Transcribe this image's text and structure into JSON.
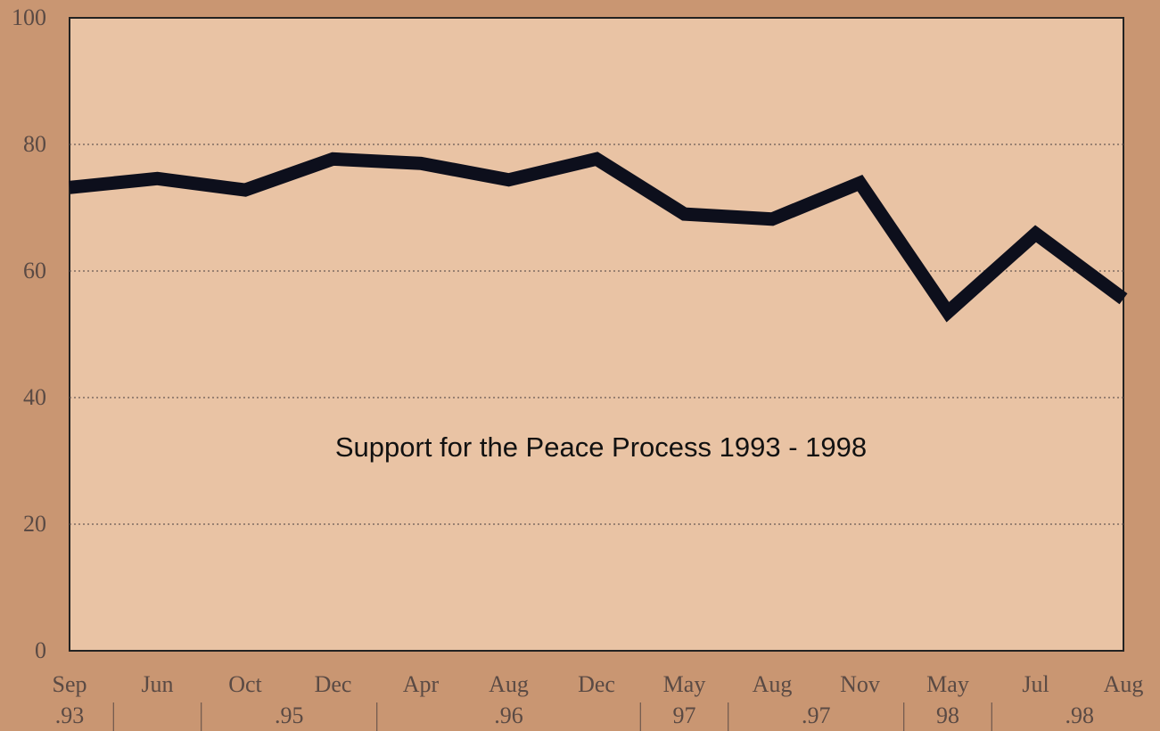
{
  "chart_data": {
    "type": "line",
    "title": "Support for the Peace Process 1993 - 1998",
    "categories": [
      "Sep",
      "Jun",
      "Oct",
      "Dec",
      "Apr",
      "Aug",
      "Dec",
      "May",
      "Aug",
      "Nov",
      "May",
      "Jul",
      "Aug"
    ],
    "year_groups": [
      {
        "label": ".93",
        "first": 0,
        "last": 0
      },
      {
        "label": ".95",
        "first": 2,
        "last": 3
      },
      {
        "label": ".96",
        "first": 4,
        "last": 6
      },
      {
        "label": "97",
        "first": 7,
        "last": 7
      },
      {
        "label": ".97",
        "first": 8,
        "last": 9
      },
      {
        "label": "98",
        "first": 10,
        "last": 10
      },
      {
        "label": ".98",
        "first": 11,
        "last": 12
      }
    ],
    "series": [
      {
        "color": "#0d0f1c",
        "values": [
          73.2,
          74.6,
          72.8,
          77.7,
          77,
          74.4,
          77.7,
          69,
          68.2,
          73.9,
          53.5,
          65.9,
          55.6
        ]
      }
    ],
    "ylim": [
      0,
      100
    ],
    "yticks": [
      0,
      20,
      40,
      60,
      80,
      100
    ],
    "grid": true
  }
}
